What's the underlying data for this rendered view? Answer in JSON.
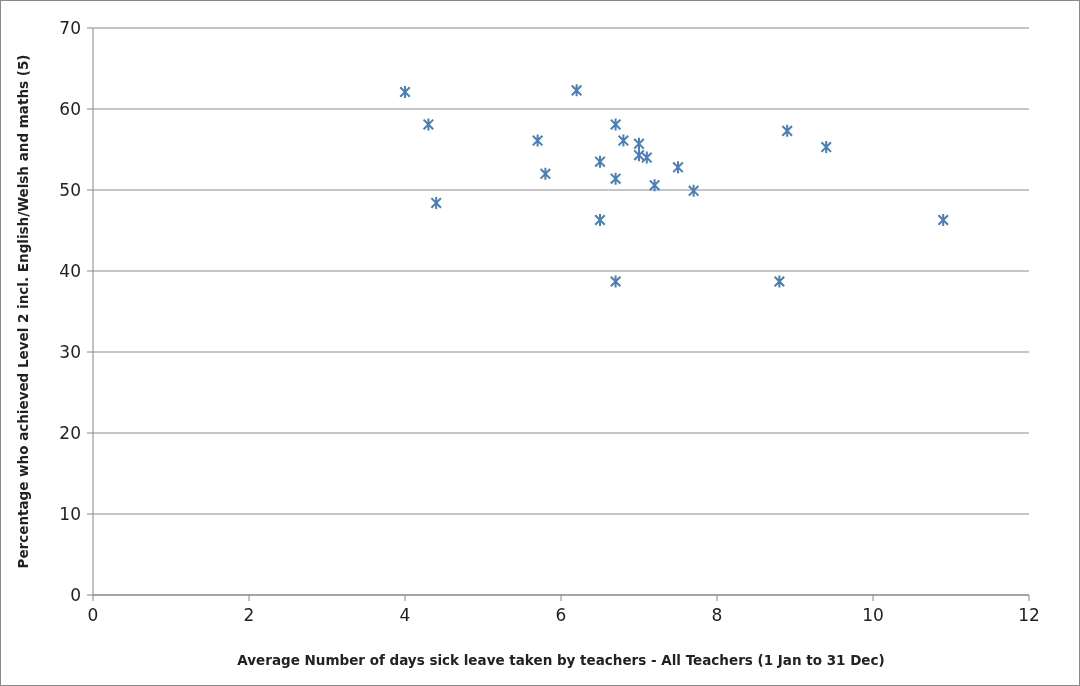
{
  "chart_data": {
    "type": "scatter",
    "xlabel": "Average Number of days sick leave taken by teachers - All Teachers (1 Jan to 31 Dec)",
    "ylabel": "Percentage who achieved Level 2 incl. English/Welsh and maths (5)",
    "x": [
      4.0,
      4.3,
      4.4,
      5.7,
      5.8,
      6.2,
      6.5,
      6.5,
      6.7,
      6.7,
      6.7,
      6.8,
      7.0,
      7.0,
      7.1,
      7.2,
      7.5,
      7.7,
      8.9,
      9.4,
      10.9,
      8.8
    ],
    "series": [
      {
        "color": "#4a7ebb",
        "values": [
          62.1,
          58.1,
          48.4,
          56.1,
          52.0,
          62.3,
          53.5,
          46.3,
          58.1,
          51.4,
          38.7,
          56.1,
          55.7,
          54.3,
          54.0,
          50.6,
          52.8,
          49.9,
          57.3,
          55.3,
          46.3,
          38.7
        ]
      }
    ],
    "xlim": [
      0,
      12
    ],
    "xticks": [
      0,
      2,
      4,
      6,
      8,
      10,
      12
    ],
    "ylim": [
      0,
      70
    ],
    "yticks": [
      0,
      10,
      20,
      30,
      40,
      50,
      60,
      70
    ],
    "grid": "y",
    "marker": "cross"
  }
}
